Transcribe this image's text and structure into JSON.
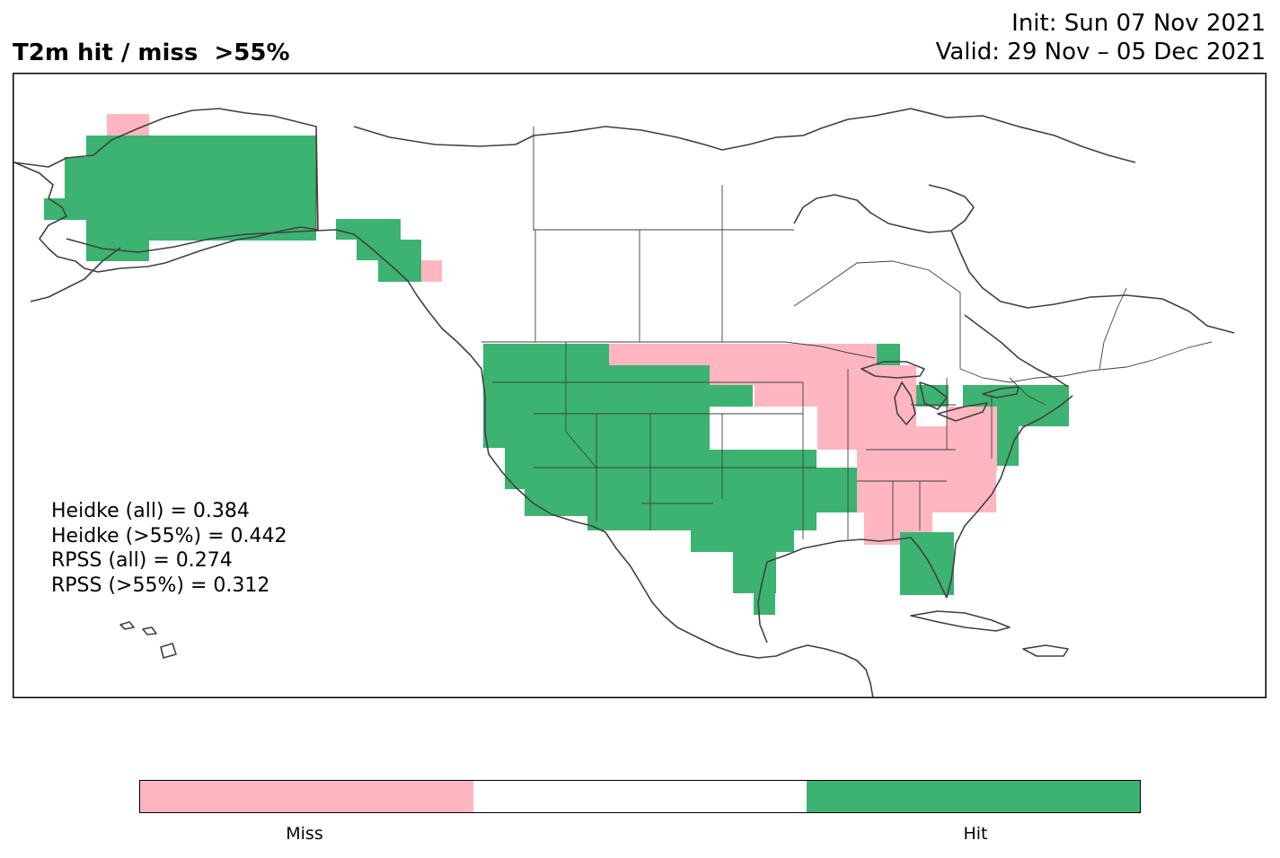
{
  "title": "T2m hit / miss  >55%",
  "init_line": "Init: Sun 07 Nov 2021",
  "valid_line": "Valid: 29 Nov – 05 Dec 2021",
  "stats": [
    "Heidke (all) = 0.384",
    "Heidke (>55%) = 0.442",
    "RPSS (all) = 0.274",
    "RPSS (>55%) = 0.312"
  ],
  "colors": {
    "miss": "#ffb6c1",
    "neutral": "#ffffff",
    "hit": "#3cb371",
    "coast": "#404040"
  },
  "legend": {
    "miss_label": "Miss",
    "hit_label": "Hit"
  },
  "regions": [
    {
      "name": "Alaska interior",
      "category": "hit"
    },
    {
      "name": "Alaska north coast",
      "category": "miss"
    },
    {
      "name": "Southeast Alaska panhandle",
      "category": "hit"
    },
    {
      "name": "Northern BC coast",
      "category": "miss"
    },
    {
      "name": "Western US",
      "category": "hit"
    },
    {
      "name": "Southern Plains / Texas",
      "category": "hit"
    },
    {
      "name": "Northern Plains / Upper Midwest",
      "category": "miss"
    },
    {
      "name": "Ohio Valley / Southeast",
      "category": "miss"
    },
    {
      "name": "Northeast US",
      "category": "hit"
    },
    {
      "name": "Florida",
      "category": "hit"
    },
    {
      "name": "Mid-Mississippi Valley",
      "category": "neutral"
    }
  ]
}
